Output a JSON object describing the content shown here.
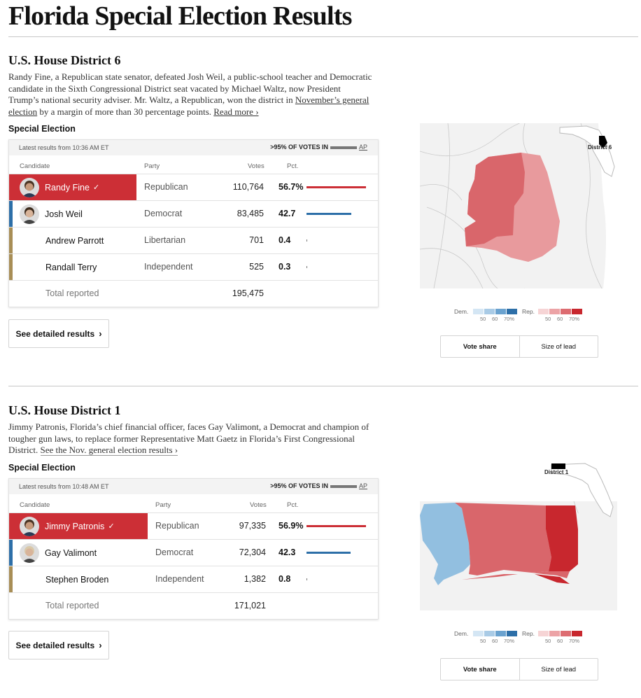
{
  "page": {
    "title": "Florida Special Election Results"
  },
  "colors": {
    "rep": "#cc2f36",
    "dem": "#2d6fa8",
    "lib": "#a88e56",
    "ind": "#a88e56"
  },
  "races": [
    {
      "title": "U.S. House District 6",
      "summary_pre": "Randy Fine, a Republican state senator, defeated Josh Weil, a public-school teacher and Democratic candidate in the Sixth Congressional District seat vacated by Michael Waltz, now President Trump’s national security adviser. Mr. Waltz, a Republican, won the district in ",
      "summary_link": "November’s general election",
      "summary_post": " by a margin of more than 30 percentage points. ",
      "read_more": "Read more ›",
      "subhead": "Special Election",
      "updated": "Latest results from 10:36 AM ET",
      "reporting": ">95% OF VOTES IN",
      "source": "AP",
      "headers": {
        "candidate": "Candidate",
        "party": "Party",
        "votes": "Votes",
        "pct": "Pct."
      },
      "candidates": [
        {
          "name": "Randy Fine",
          "party": "Republican",
          "votes": "110,764",
          "pct": "56.7%",
          "share": 56.7,
          "winner": true,
          "color": "rep",
          "avatar": true
        },
        {
          "name": "Josh Weil",
          "party": "Democrat",
          "votes": "83,485",
          "pct": "42.7",
          "share": 42.7,
          "winner": false,
          "color": "dem",
          "avatar": true
        },
        {
          "name": "Andrew Parrott",
          "party": "Libertarian",
          "votes": "701",
          "pct": "0.4",
          "share": 0.4,
          "winner": false,
          "color": "lib",
          "avatar": false
        },
        {
          "name": "Randall Terry",
          "party": "Independent",
          "votes": "525",
          "pct": "0.3",
          "share": 0.3,
          "winner": false,
          "color": "ind",
          "avatar": false
        }
      ],
      "total_label": "Total reported",
      "total_votes": "195,475",
      "button": "See detailed results",
      "map_label": "District 6",
      "legend": {
        "dem": "Dem.",
        "rep": "Rep.",
        "ticks": [
          "50",
          "60",
          "70%"
        ]
      },
      "toggle": [
        "Vote share",
        "Size of lead"
      ]
    },
    {
      "title": "U.S. House District 1",
      "summary_pre": "Jimmy Patronis, Florida’s chief financial officer, faces Gay Valimont, a Democrat and champion of tougher gun laws, to replace former Representative Matt Gaetz in Florida’s First Congressional District. ",
      "summary_link": "See the Nov. general election results ›",
      "summary_post": "",
      "read_more": "",
      "subhead": "Special Election",
      "updated": "Latest results from 10:48 AM ET",
      "reporting": ">95% OF VOTES IN",
      "source": "AP",
      "headers": {
        "candidate": "Candidate",
        "party": "Party",
        "votes": "Votes",
        "pct": "Pct."
      },
      "candidates": [
        {
          "name": "Jimmy Patronis",
          "party": "Republican",
          "votes": "97,335",
          "pct": "56.9%",
          "share": 56.9,
          "winner": true,
          "color": "rep",
          "avatar": true
        },
        {
          "name": "Gay Valimont",
          "party": "Democrat",
          "votes": "72,304",
          "pct": "42.3",
          "share": 42.3,
          "winner": false,
          "color": "dem",
          "avatar": true
        },
        {
          "name": "Stephen Broden",
          "party": "Independent",
          "votes": "1,382",
          "pct": "0.8",
          "share": 0.8,
          "winner": false,
          "color": "ind",
          "avatar": false
        }
      ],
      "total_label": "Total reported",
      "total_votes": "171,021",
      "button": "See detailed results",
      "map_label": "District 1",
      "legend": {
        "dem": "Dem.",
        "rep": "Rep.",
        "ticks": [
          "50",
          "60",
          "70%"
        ]
      },
      "toggle": [
        "Vote share",
        "Size of lead"
      ]
    }
  ]
}
